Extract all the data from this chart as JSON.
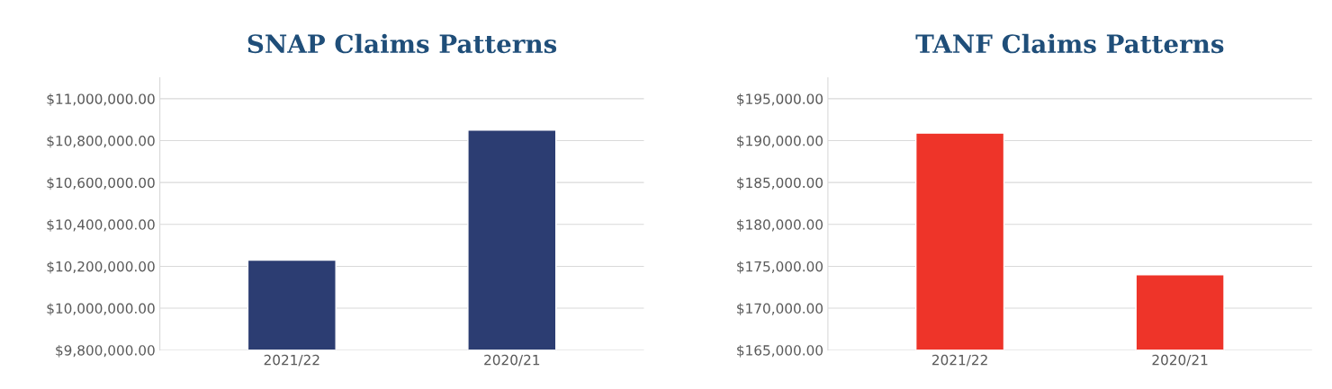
{
  "chart_data": [
    {
      "type": "bar",
      "title": "SNAP Claims Patterns",
      "categories": [
        "2021/22",
        "2020/21"
      ],
      "values": [
        10230000,
        10850000
      ],
      "color": "#2c3d72",
      "ylim": [
        9800000,
        11100000
      ],
      "yticks": [
        {
          "value": 9800000,
          "label": "$9,800,000.00"
        },
        {
          "value": 10000000,
          "label": "$10,000,000.00"
        },
        {
          "value": 10200000,
          "label": "$10,200,000.00"
        },
        {
          "value": 10400000,
          "label": "$10,400,000.00"
        },
        {
          "value": 10600000,
          "label": "$10,600,000.00"
        },
        {
          "value": 10800000,
          "label": "$10,800,000.00"
        },
        {
          "value": 11000000,
          "label": "$11,000,000.00"
        }
      ],
      "grid": "y"
    },
    {
      "type": "bar",
      "title": "TANF Claims Patterns",
      "categories": [
        "2021/22",
        "2020/21"
      ],
      "values": [
        190900,
        174000
      ],
      "color": "#ee3429",
      "ylim": [
        165000,
        197500
      ],
      "yticks": [
        {
          "value": 165000,
          "label": "$165,000.00"
        },
        {
          "value": 170000,
          "label": "$170,000.00"
        },
        {
          "value": 175000,
          "label": "$175,000.00"
        },
        {
          "value": 180000,
          "label": "$180,000.00"
        },
        {
          "value": 185000,
          "label": "$185,000.00"
        },
        {
          "value": 190000,
          "label": "$190,000.00"
        },
        {
          "value": 195000,
          "label": "$195,000.00"
        }
      ],
      "grid": "y"
    }
  ]
}
